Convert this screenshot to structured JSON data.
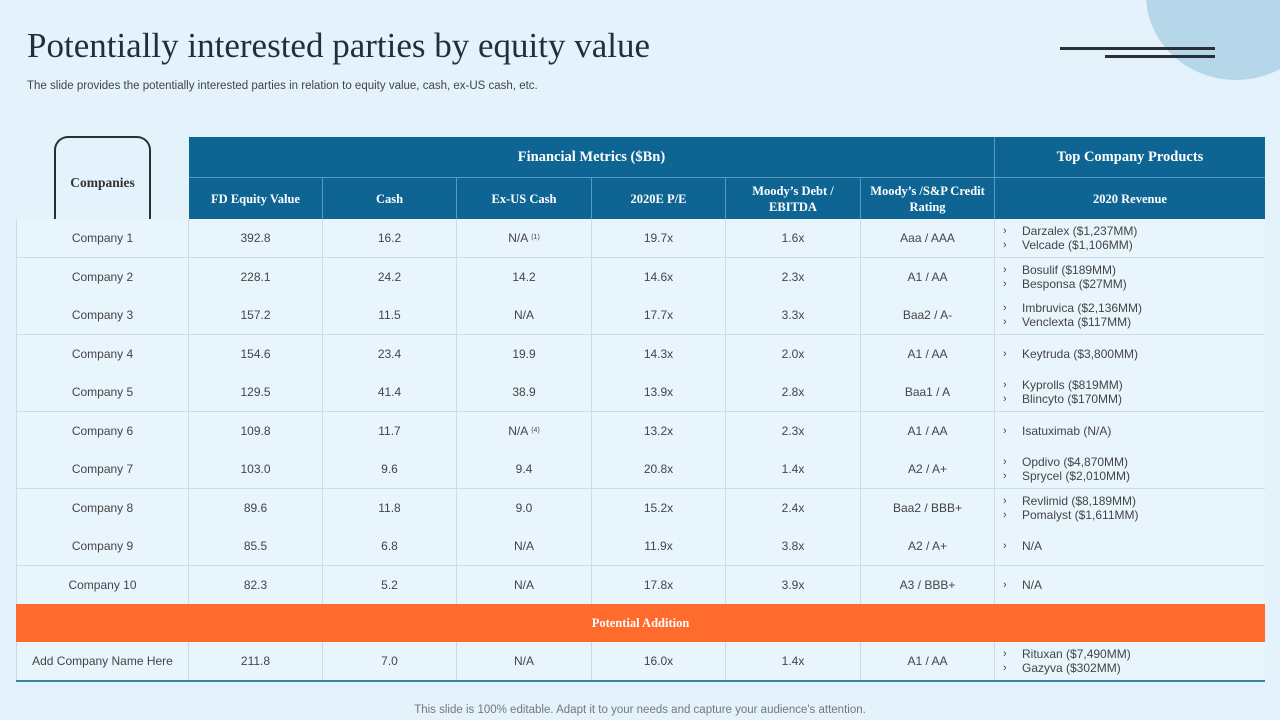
{
  "title": "Potentially interested parties by equity value",
  "subtitle": "The slide provides the potentially interested parties in relation to equity value,  cash, ex-US cash, etc.",
  "companies_label": "Companies",
  "header": {
    "financial_metrics": "Financial Metrics ($Bn)",
    "top_products": "Top Company Products",
    "columns": [
      "FD Equity Value",
      "Cash",
      "Ex-US Cash",
      "2020E P/E",
      "Moody’s  Debt / EBITDA",
      "Moody’s  /S&P Credit Rating",
      "2020 Revenue"
    ]
  },
  "rows": [
    {
      "company": "Company 1",
      "equity": "392.8",
      "cash": "16.2",
      "exus": "N/A",
      "exus_note": "(1)",
      "pe": "19.7x",
      "debt": "1.6x",
      "rating": "Aaa / AAA",
      "products": [
        "Darzalex ($1,237MM)",
        "Velcade ($1,106MM)"
      ]
    },
    {
      "company": "Company 2",
      "equity": "228.1",
      "cash": "24.2",
      "exus": "14.2",
      "exus_note": "",
      "pe": "14.6x",
      "debt": "2.3x",
      "rating": "A1 / AA",
      "products": [
        "Bosulif ($189MM)",
        "Besponsa ($27MM)"
      ]
    },
    {
      "company": "Company 3",
      "equity": "157.2",
      "cash": "11.5",
      "exus": "N/A",
      "exus_note": "",
      "pe": "17.7x",
      "debt": "3.3x",
      "rating": "Baa2 / A-",
      "products": [
        "Imbruvica ($2,136MM)",
        "Venclexta  ($117MM)"
      ]
    },
    {
      "company": "Company 4",
      "equity": "154.6",
      "cash": "23.4",
      "exus": "19.9",
      "exus_note": "",
      "pe": "14.3x",
      "debt": "2.0x",
      "rating": "A1 / AA",
      "products": [
        "Keytruda ($3,800MM)"
      ]
    },
    {
      "company": "Company 5",
      "equity": "129.5",
      "cash": "41.4",
      "exus": "38.9",
      "exus_note": "",
      "pe": "13.9x",
      "debt": "2.8x",
      "rating": "Baa1 / A",
      "products": [
        "Kyprolls ($819MM)",
        "Blincyto ($170MM)"
      ]
    },
    {
      "company": "Company 6",
      "equity": "109.8",
      "cash": "11.7",
      "exus": "N/A",
      "exus_note": "(4)",
      "pe": "13.2x",
      "debt": "2.3x",
      "rating": "A1 / AA",
      "products": [
        "Isatuximab (N/A)"
      ]
    },
    {
      "company": "Company 7",
      "equity": "103.0",
      "cash": "9.6",
      "exus": "9.4",
      "exus_note": "",
      "pe": "20.8x",
      "debt": "1.4x",
      "rating": "A2 / A+",
      "products": [
        "Opdivo ($4,870MM)",
        "Sprycel ($2,010MM)"
      ]
    },
    {
      "company": "Company 8",
      "equity": "89.6",
      "cash": "11.8",
      "exus": "9.0",
      "exus_note": "",
      "pe": "15.2x",
      "debt": "2.4x",
      "rating": "Baa2 / BBB+",
      "products": [
        "Revlimid ($8,189MM)",
        "Pomalyst ($1,611MM)"
      ]
    },
    {
      "company": "Company 9",
      "equity": "85.5",
      "cash": "6.8",
      "exus": "N/A",
      "exus_note": "",
      "pe": "11.9x",
      "debt": "3.8x",
      "rating": "A2 / A+",
      "products": [
        "N/A"
      ]
    },
    {
      "company": "Company 10",
      "equity": "82.3",
      "cash": "5.2",
      "exus": "N/A",
      "exus_note": "",
      "pe": "17.8x",
      "debt": "3.9x",
      "rating": "A3 / BBB+",
      "products": [
        "N/A"
      ]
    }
  ],
  "potential_addition": "Potential Addition",
  "addition_row": {
    "company": "Add Company Name Here",
    "equity": "211.8",
    "cash": "7.0",
    "exus": "N/A",
    "exus_note": "",
    "pe": "16.0x",
    "debt": "1.4x",
    "rating": "A1 / AA",
    "products": [
      "Rituxan ($7,490MM)",
      "Gazyva  ($302MM)"
    ]
  },
  "footer": "This slide is 100% editable. Adapt it to your needs and capture your audience's attention.",
  "colors": {
    "header_blue": "#0e6594",
    "accent_orange": "#ff6b2c",
    "background": "#e3f2fb"
  },
  "icons": {
    "bullet": "chevron-right-icon"
  }
}
